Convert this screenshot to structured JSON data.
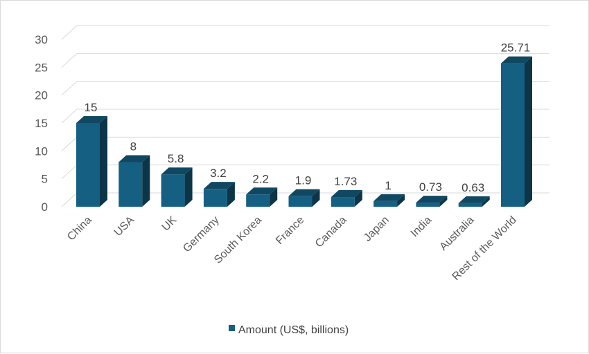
{
  "chart_data": {
    "type": "bar",
    "categories": [
      "China",
      "USA",
      "UK",
      "Germany",
      "South Korea",
      "France",
      "Canada",
      "Japan",
      "India",
      "Australia",
      "Rest of the World"
    ],
    "series": [
      {
        "name": "Amount (US$, billions)",
        "values": [
          15,
          8,
          5.8,
          3.2,
          2.2,
          1.9,
          1.73,
          1,
          0.73,
          0.63,
          25.71
        ],
        "labels": [
          "15",
          "8",
          "5.8",
          "3.2",
          "2.2",
          "1.9",
          "1.73",
          "1",
          "0.73",
          "0.63",
          "25.71"
        ],
        "color": "#156082"
      }
    ],
    "ylim": [
      0,
      30
    ],
    "yticks": [
      0,
      5,
      10,
      15,
      20,
      25,
      30
    ],
    "grid": true,
    "legend": "bottom",
    "style": "3d-column"
  }
}
